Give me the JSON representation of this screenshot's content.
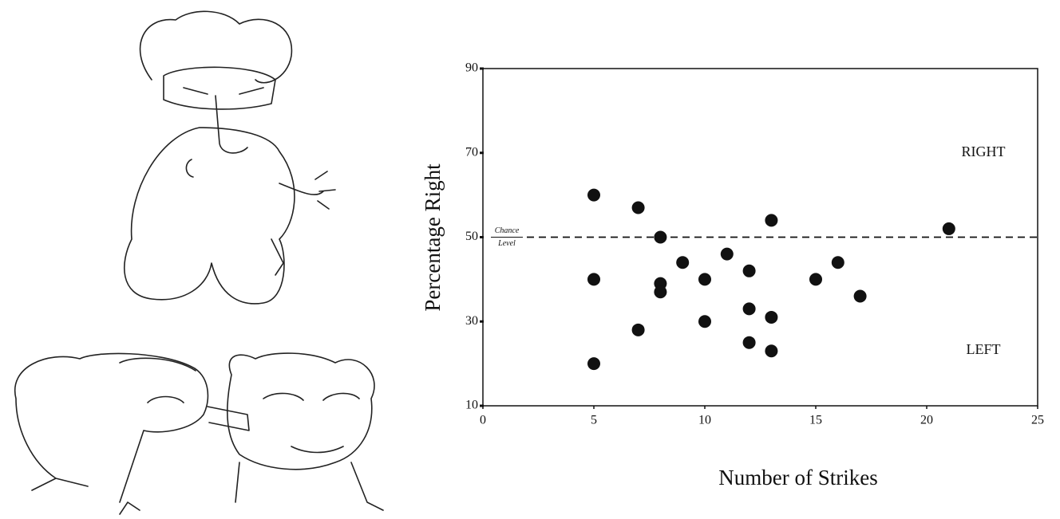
{
  "chart_data": {
    "type": "scatter",
    "xlabel": "Number of Strikes",
    "ylabel": "Percentage Right",
    "xlim": [
      0,
      25
    ],
    "ylim": [
      10,
      90
    ],
    "xticks": [
      0,
      5,
      10,
      15,
      20,
      25
    ],
    "yticks": [
      10,
      30,
      50,
      70,
      90
    ],
    "color": "#111111",
    "x": [
      5,
      5,
      5,
      7,
      7,
      8,
      8,
      8,
      9,
      10,
      10,
      11,
      12,
      12,
      12,
      13,
      13,
      13,
      15,
      16,
      17,
      21
    ],
    "values": [
      60,
      40,
      20,
      57,
      28,
      50,
      39,
      37,
      44,
      40,
      30,
      46,
      42,
      33,
      25,
      54,
      31,
      23,
      40,
      44,
      36,
      52
    ],
    "reference_line": {
      "value": 50,
      "label": [
        "Chance",
        "Level"
      ]
    },
    "annotations": [
      "RIGHT",
      "LEFT"
    ]
  }
}
